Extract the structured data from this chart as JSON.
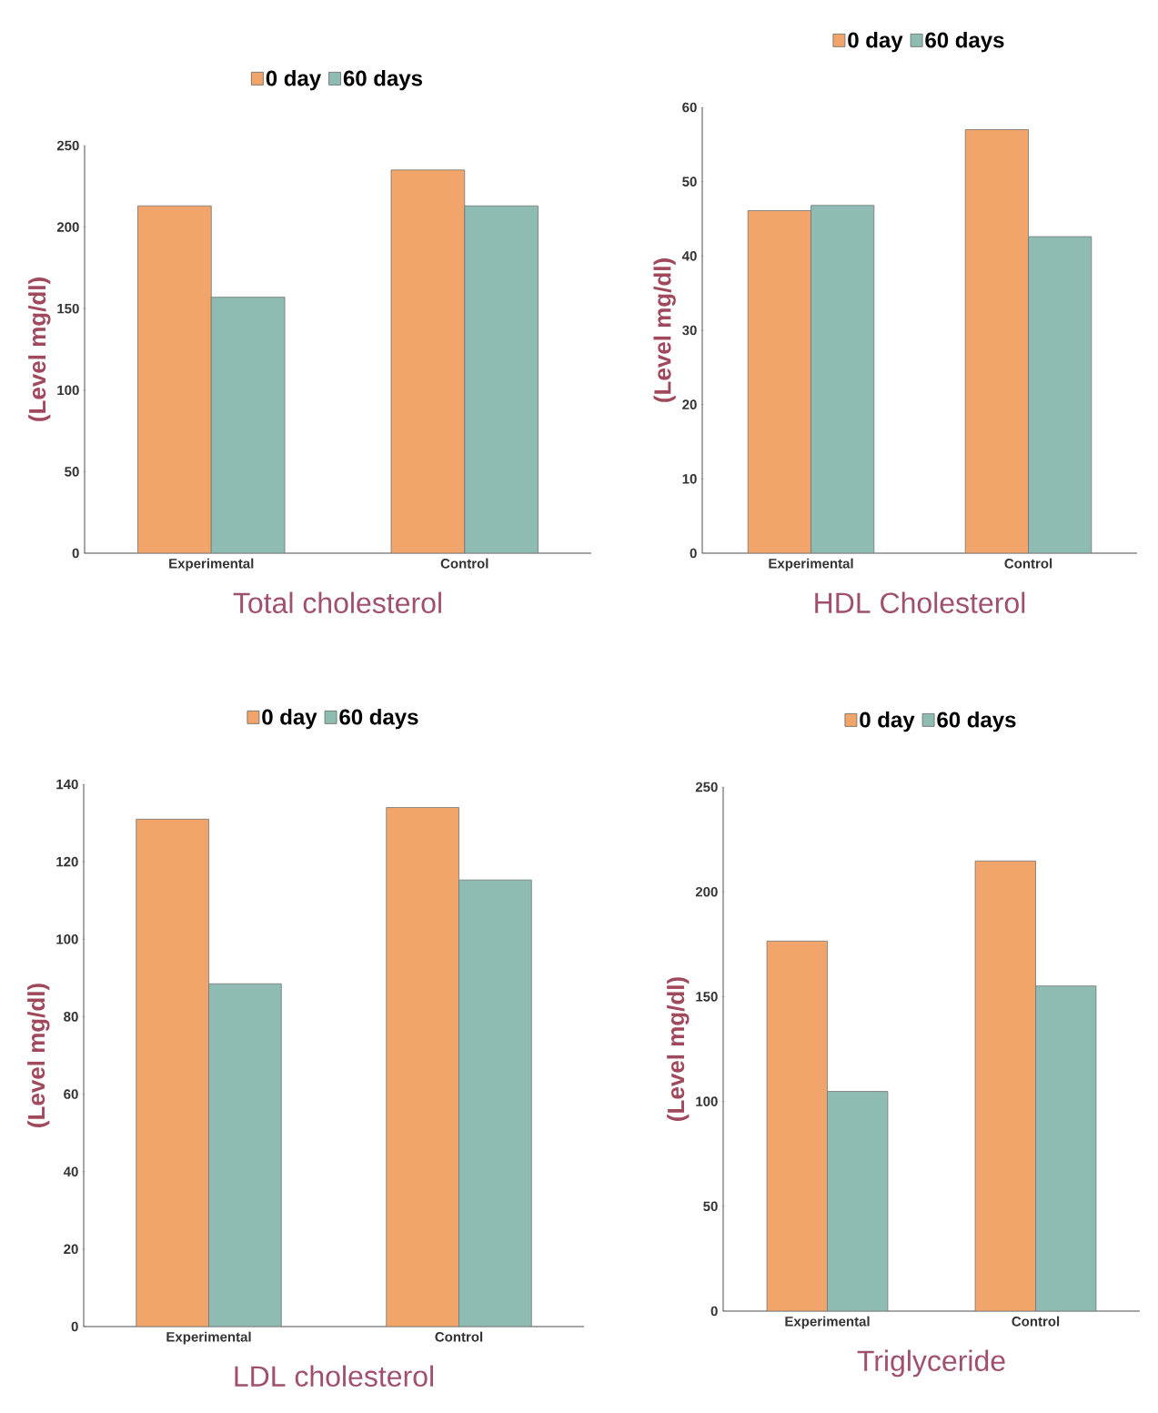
{
  "chart_data": [
    {
      "type": "bar",
      "title": "Total cholesterol",
      "ylabel": "(Level mg/dl)",
      "categories": [
        "Experimental",
        "Control"
      ],
      "series": [
        {
          "name": "0 day",
          "color": "#f2a56a",
          "values": [
            213,
            235
          ]
        },
        {
          "name": "60 days",
          "color": "#8fbcb2",
          "values": [
            157,
            213
          ]
        }
      ],
      "ylim": [
        0,
        250
      ],
      "yticks": [
        0,
        50,
        100,
        150,
        200,
        250
      ],
      "legend": "top"
    },
    {
      "type": "bar",
      "title": "HDL Cholesterol",
      "ylabel": "(Level mg/dl)",
      "categories": [
        "Experimental",
        "Control"
      ],
      "series": [
        {
          "name": "0 day",
          "color": "#f2a56a",
          "values": [
            46.1,
            57.0
          ]
        },
        {
          "name": "60 days",
          "color": "#8fbcb2",
          "values": [
            46.8,
            42.6
          ]
        }
      ],
      "ylim": [
        0,
        60
      ],
      "yticks": [
        0,
        10,
        20,
        30,
        40,
        50,
        60
      ],
      "legend": "top"
    },
    {
      "type": "bar",
      "title": "LDL cholesterol",
      "ylabel": "(Level mg/dl)",
      "categories": [
        "Experimental",
        "Control"
      ],
      "series": [
        {
          "name": "0 day",
          "color": "#f2a56a",
          "values": [
            131,
            134
          ]
        },
        {
          "name": "60 days",
          "color": "#8fbcb2",
          "values": [
            88.5,
            115.3
          ]
        }
      ],
      "ylim": [
        0,
        140
      ],
      "yticks": [
        0,
        20,
        40,
        60,
        80,
        100,
        120,
        140
      ],
      "legend": "top"
    },
    {
      "type": "bar",
      "title": "Triglyceride",
      "ylabel": "(Level mg/dl)",
      "categories": [
        "Experimental",
        "Control"
      ],
      "series": [
        {
          "name": "0 day",
          "color": "#f2a56a",
          "values": [
            176.5,
            214.7
          ]
        },
        {
          "name": "60 days",
          "color": "#8fbcb2",
          "values": [
            104.8,
            155.1
          ]
        }
      ],
      "ylim": [
        0,
        250
      ],
      "yticks": [
        0,
        50,
        100,
        150,
        200,
        250
      ],
      "legend": "top"
    }
  ]
}
